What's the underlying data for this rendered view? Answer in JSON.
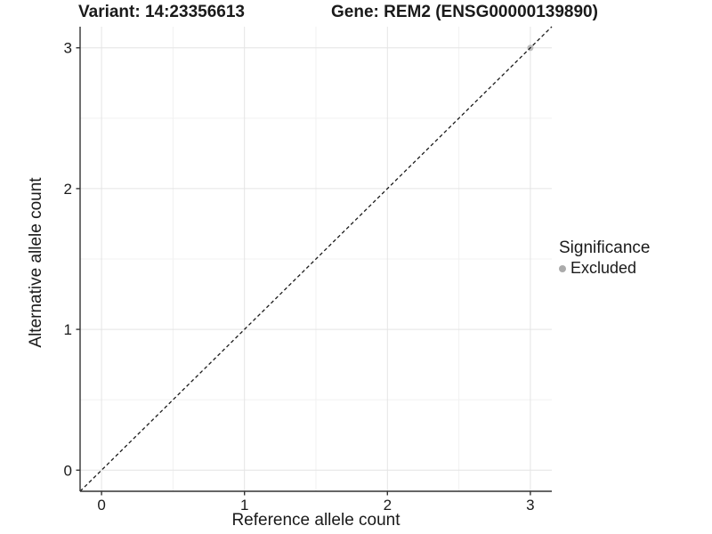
{
  "title": {
    "variant": "Variant: 14:23356613",
    "gene": "Gene: REM2 (ENSG00000139890)"
  },
  "chart_data": {
    "type": "scatter",
    "title": "Variant: 14:23356613 / Gene: REM2 (ENSG00000139890)",
    "xlabel": "Reference allele count",
    "ylabel": "Alternative allele count",
    "xlim": [
      -0.15,
      3.15
    ],
    "ylim": [
      -0.15,
      3.15
    ],
    "x_ticks": [
      0,
      1,
      2,
      3
    ],
    "y_ticks": [
      0,
      1,
      2,
      3
    ],
    "x_minor_ticks": [
      0.5,
      1.5,
      2.5
    ],
    "y_minor_ticks": [
      0.5,
      1.5,
      2.5
    ],
    "grid": "major and minor gridlines on white panel",
    "identity_line": {
      "style": "dashed",
      "from": [
        -0.15,
        -0.15
      ],
      "to": [
        3.15,
        3.15
      ],
      "color": "#1a1a1a"
    },
    "series": [
      {
        "name": "Excluded",
        "color": "#bdbdbd",
        "points": [
          [
            3,
            3
          ]
        ]
      }
    ],
    "legend": {
      "title": "Significance",
      "position": "right",
      "items": [
        {
          "label": "Excluded",
          "color": "#ababab"
        }
      ]
    },
    "colors": {
      "grid_major": "#e4e4e4",
      "grid_minor": "#f1f1f1",
      "axis_line": "#333333",
      "tick_mark": "#333333",
      "text": "#1a1a1a"
    },
    "tick_font_px": 17
  }
}
